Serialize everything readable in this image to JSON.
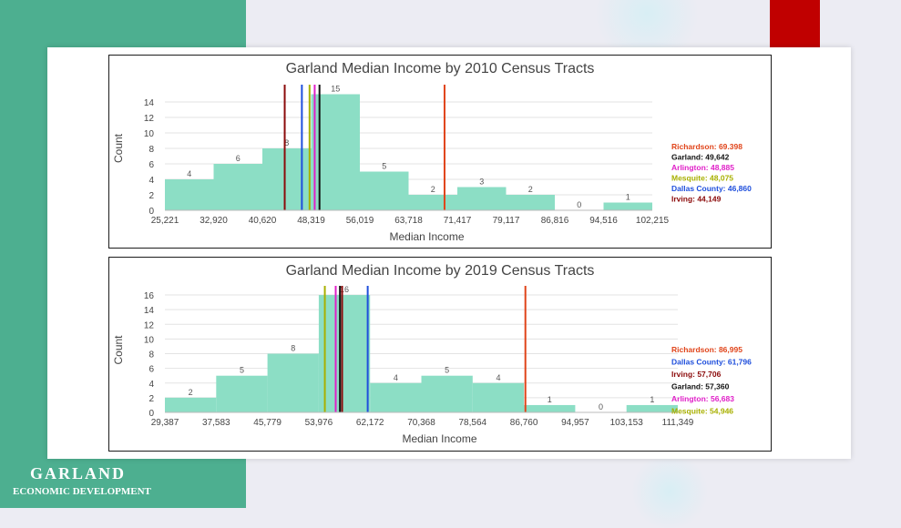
{
  "brand": {
    "name": "GARLAND",
    "subtitle": "ECONOMIC DEVELOPMENT",
    "colors": {
      "green": "#4daf90",
      "red": "#c00000"
    }
  },
  "chart_data": [
    {
      "type": "bar",
      "title": "Garland Median Income by 2010 Census Tracts",
      "xlabel": "Median Income",
      "ylabel": "Count",
      "bin_edges": [
        25221,
        32920,
        40620,
        48319,
        56019,
        63718,
        71417,
        79117,
        86816,
        94516,
        102215
      ],
      "x_tick_labels": [
        "25,221",
        "32,920",
        "40,620",
        "48,319",
        "56,019",
        "63,718",
        "71,417",
        "79,117",
        "86,816",
        "94,516",
        "102,215"
      ],
      "values": [
        4,
        6,
        8,
        15,
        5,
        2,
        3,
        2,
        0,
        1
      ],
      "ylim": [
        0,
        16
      ],
      "y_ticks": [
        0,
        2,
        4,
        6,
        8,
        10,
        12,
        14
      ],
      "bar_color": "#8cdec5",
      "grid": true,
      "legend_position": "right",
      "reference_lines": [
        {
          "label": "Richardson: 69.398",
          "value": 69398,
          "color": "#e0441a"
        },
        {
          "label": "Garland: 49,642",
          "value": 49642,
          "color": "#111111"
        },
        {
          "label": "Arlington: 48,885",
          "value": 48885,
          "color": "#e020c8"
        },
        {
          "label": "Mesquite: 48,075",
          "value": 48075,
          "color": "#a8b000"
        },
        {
          "label": "Dallas County: 46,860",
          "value": 46860,
          "color": "#1f4fdc"
        },
        {
          "label": "Irving: 44,149",
          "value": 44149,
          "color": "#8b0a0a"
        }
      ]
    },
    {
      "type": "bar",
      "title": "Garland Median Income by 2019 Census Tracts",
      "xlabel": "Median Income",
      "ylabel": "Count",
      "bin_edges": [
        29387,
        37583,
        45779,
        53976,
        62172,
        70368,
        78564,
        86760,
        94957,
        103153,
        111349
      ],
      "x_tick_labels": [
        "29,387",
        "37,583",
        "45,779",
        "53,976",
        "62,172",
        "70,368",
        "78,564",
        "86,760",
        "94,957",
        "103,153",
        "111,349"
      ],
      "values": [
        2,
        5,
        8,
        16,
        4,
        5,
        4,
        1,
        0,
        1
      ],
      "ylim": [
        0,
        17
      ],
      "y_ticks": [
        0,
        2,
        4,
        6,
        8,
        10,
        12,
        14,
        16
      ],
      "bar_color": "#8cdec5",
      "grid": true,
      "legend_position": "right",
      "reference_lines": [
        {
          "label": "Richardson: 86,995",
          "value": 86995,
          "color": "#e0441a"
        },
        {
          "label": "Dallas County: 61,796",
          "value": 61796,
          "color": "#1f4fdc"
        },
        {
          "label": "Irving: 57,706",
          "value": 57706,
          "color": "#8b0a0a"
        },
        {
          "label": "Garland: 57,360",
          "value": 57360,
          "color": "#111111"
        },
        {
          "label": "Arlington: 56,683",
          "value": 56683,
          "color": "#e020c8"
        },
        {
          "label": "Mesquite: 54,946",
          "value": 54946,
          "color": "#a8b000"
        }
      ]
    }
  ]
}
